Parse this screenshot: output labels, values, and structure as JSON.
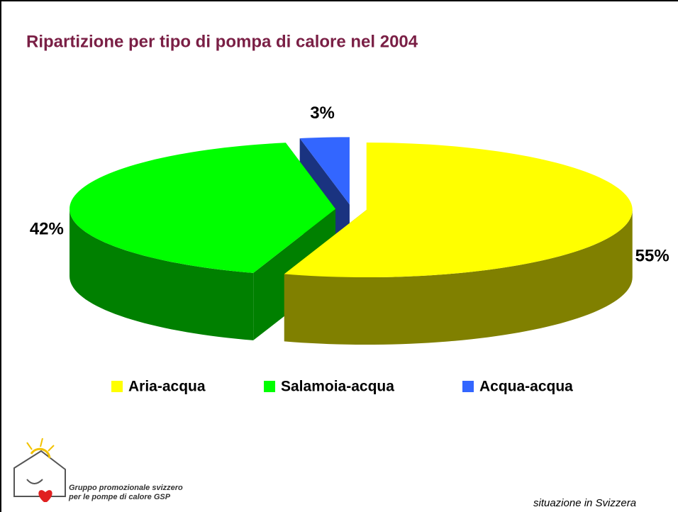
{
  "chart_data": {
    "type": "pie",
    "title": "Ripartizione per tipo di pompa di calore nel 2004",
    "categories": [
      "Aria-acqua",
      "Salamoia-acqua",
      "Acqua-acqua"
    ],
    "values": [
      55,
      42,
      3
    ],
    "value_labels": [
      "55%",
      "42%",
      "3%"
    ],
    "colors": [
      "#ffff00",
      "#00ff00",
      "#3366ff"
    ],
    "legend": "bottom"
  },
  "logo": {
    "lines": [
      "Gruppo promozionale svizzero",
      "per le pompe di calore GSP"
    ]
  },
  "footnote": "situazione in Svizzera"
}
